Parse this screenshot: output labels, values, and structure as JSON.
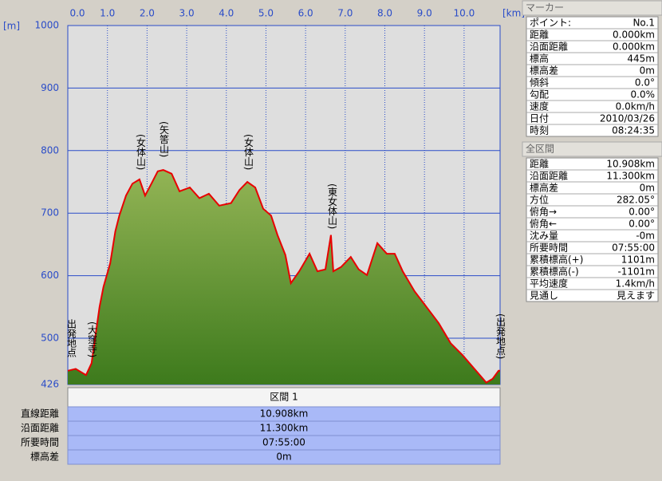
{
  "chart_data": {
    "type": "area",
    "x_unit": "[km]",
    "y_unit": "[m]",
    "x": [
      0,
      0.2,
      0.46,
      0.6,
      0.8,
      0.9,
      1.07,
      1.2,
      1.3,
      1.47,
      1.63,
      1.81,
      1.95,
      2.11,
      2.27,
      2.41,
      2.62,
      2.82,
      3.08,
      3.32,
      3.56,
      3.82,
      4.12,
      4.33,
      4.53,
      4.73,
      4.93,
      5.13,
      5.29,
      5.49,
      5.63,
      5.84,
      6.1,
      6.3,
      6.5,
      6.64,
      6.7,
      6.9,
      7.14,
      7.34,
      7.55,
      7.81,
      8.05,
      8.25,
      8.45,
      8.75,
      9.05,
      9.36,
      9.66,
      9.96,
      10.26,
      10.56,
      10.72,
      10.87,
      10.908
    ],
    "values": [
      448,
      451,
      441,
      460,
      550,
      582,
      620,
      671,
      696,
      728,
      747,
      754,
      728,
      747,
      767,
      769,
      763,
      735,
      741,
      724,
      731,
      712,
      716,
      737,
      750,
      741,
      707,
      696,
      665,
      633,
      588,
      607,
      635,
      607,
      610,
      665,
      607,
      614,
      630,
      610,
      601,
      652,
      635,
      635,
      607,
      575,
      550,
      524,
      492,
      473,
      451,
      429,
      435,
      448,
      448
    ],
    "color": "#e80000",
    "fill": "#6f9c3a",
    "xlim": [
      0,
      10.908
    ],
    "ylim": [
      426,
      1000
    ],
    "xticks": [
      {
        "value": 0,
        "label": "0.0"
      },
      {
        "value": 1,
        "label": "1.0"
      },
      {
        "value": 2,
        "label": "2.0"
      },
      {
        "value": 3,
        "label": "3.0"
      },
      {
        "value": 4,
        "label": "4.0"
      },
      {
        "value": 5,
        "label": "5.0"
      },
      {
        "value": 6,
        "label": "6.0"
      },
      {
        "value": 7,
        "label": "7.0"
      },
      {
        "value": 8,
        "label": "8.0"
      },
      {
        "value": 9,
        "label": "9.0"
      },
      {
        "value": 10,
        "label": "10.0"
      }
    ],
    "yticks": [
      426,
      500,
      600,
      700,
      800,
      900,
      1000
    ],
    "grid": true,
    "annotations": [
      "出発地点",
      "(大窪寺)",
      "(女体山)",
      "(矢筈山)",
      "(女体山)",
      "(東女体山)",
      "(出発地点)"
    ]
  },
  "section_table": {
    "header": "区間 1",
    "rows": [
      [
        "直線距離",
        "10.908km"
      ],
      [
        "沿面距離",
        "11.300km"
      ],
      [
        "所要時間",
        "07:55:00"
      ],
      [
        "標高差",
        "0m"
      ]
    ]
  },
  "marker_panel": {
    "title": "マーカー",
    "rows": [
      [
        "ポイント:",
        "No.1"
      ],
      [
        "距離",
        "0.000km"
      ],
      [
        "沿面距離",
        "0.000km"
      ],
      [
        "標高",
        "445m"
      ],
      [
        "標高差",
        "0m"
      ],
      [
        "傾斜",
        "0.0°"
      ],
      [
        "勾配",
        "0.0%"
      ],
      [
        "速度",
        "0.0km/h"
      ],
      [
        "日付",
        "2010/03/26"
      ],
      [
        "時刻",
        "08:24:35"
      ]
    ]
  },
  "total_panel": {
    "title": "全区間",
    "rows": [
      [
        "距離",
        "10.908km"
      ],
      [
        "沿面距離",
        "11.300km"
      ],
      [
        "標高差",
        "0m"
      ],
      [
        "方位",
        "282.05°"
      ],
      [
        "俯角→",
        "0.00°"
      ],
      [
        "俯角←",
        "0.00°"
      ],
      [
        "沈み量",
        "-0m"
      ],
      [
        "所要時間",
        "07:55:00"
      ],
      [
        "累積標高(+)",
        "1101m"
      ],
      [
        "累積標高(-)",
        "-1101m"
      ],
      [
        "平均速度",
        "1.4km/h"
      ],
      [
        "見通し",
        "見えます"
      ]
    ]
  }
}
